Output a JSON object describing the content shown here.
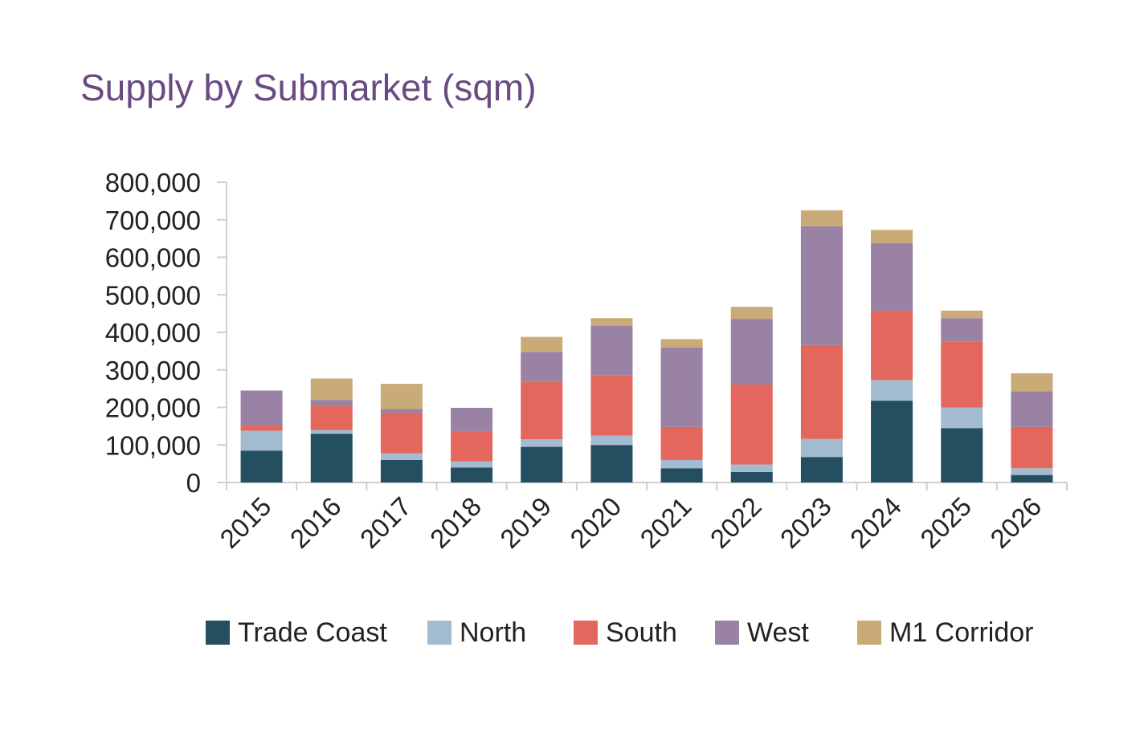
{
  "chart_data": {
    "type": "bar",
    "stacked": true,
    "title": "Supply by Submarket (sqm)",
    "xlabel": "",
    "ylabel": "",
    "ylim": [
      0,
      800000
    ],
    "yticks": [
      0,
      100000,
      200000,
      300000,
      400000,
      500000,
      600000,
      700000,
      800000
    ],
    "ytick_labels": [
      "0",
      "100,000",
      "200,000",
      "300,000",
      "400,000",
      "500,000",
      "600,000",
      "700,000",
      "800,000"
    ],
    "grid": false,
    "legend_position": "bottom",
    "categories": [
      "2015",
      "2016",
      "2017",
      "2018",
      "2019",
      "2020",
      "2021",
      "2022",
      "2023",
      "2024",
      "2025",
      "2026"
    ],
    "series": [
      {
        "name": "Trade Coast",
        "color": "#234f60",
        "values": [
          85000,
          130000,
          60000,
          40000,
          95000,
          100000,
          38000,
          28000,
          68000,
          218000,
          145000,
          20000
        ]
      },
      {
        "name": "North",
        "color": "#a3bbcf",
        "values": [
          53000,
          10000,
          18000,
          16000,
          20000,
          25000,
          22000,
          20000,
          48000,
          55000,
          55000,
          18000
        ]
      },
      {
        "name": "South",
        "color": "#e3675c",
        "values": [
          15000,
          65000,
          108000,
          80000,
          153000,
          161000,
          88000,
          213000,
          250000,
          185000,
          175000,
          110000
        ]
      },
      {
        "name": "West",
        "color": "#9a82a4",
        "values": [
          92000,
          15000,
          10000,
          63000,
          80000,
          132000,
          212000,
          175000,
          317000,
          180000,
          63000,
          95000
        ]
      },
      {
        "name": "M1 Corridor",
        "color": "#c9ab78",
        "values": [
          0,
          57000,
          67000,
          0,
          40000,
          20000,
          22000,
          32000,
          42000,
          35000,
          20000,
          48000
        ]
      }
    ]
  }
}
